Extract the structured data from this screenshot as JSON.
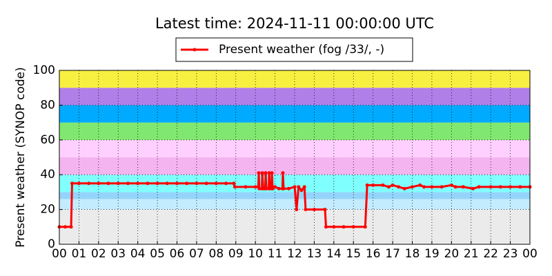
{
  "chart_data": {
    "type": "line",
    "title": "Latest time: 2024-11-11 00:00:00 UTC",
    "y_label": "Present weather (SYNOP code)",
    "x": [
      0,
      0.3,
      0.6,
      0.65,
      1,
      1.5,
      2,
      2.5,
      3,
      3.5,
      4,
      4.5,
      5,
      5.5,
      6,
      6.5,
      7,
      7.5,
      8,
      8.5,
      8.9,
      8.95,
      9.5,
      10,
      10.15,
      10.17,
      10.2,
      10.33,
      10.35,
      10.4,
      10.5,
      10.52,
      10.56,
      10.68,
      10.7,
      10.74,
      10.82,
      10.84,
      10.88,
      11,
      11.2,
      11.38,
      11.4,
      11.44,
      11.7,
      12,
      12.1,
      12.2,
      12.35,
      12.5,
      12.56,
      13,
      13.55,
      13.6,
      14,
      14.5,
      15,
      15.6,
      15.7,
      16,
      16.5,
      16.8,
      17,
      17.3,
      17.6,
      18,
      18.4,
      18.6,
      19,
      19.5,
      20,
      20.2,
      20.6,
      21.1,
      21.4,
      22,
      22.5,
      23,
      23.5,
      24
    ],
    "series": [
      {
        "name": "Present weather (fog /33/, -)",
        "color": "#ff0000",
        "values": [
          10,
          10,
          10,
          35,
          35,
          35,
          35,
          35,
          35,
          35,
          35,
          35,
          35,
          35,
          35,
          35,
          35,
          35,
          35,
          35,
          35,
          33,
          33,
          33,
          33,
          41,
          32,
          32,
          41,
          32,
          32,
          41,
          32,
          32,
          41,
          32,
          32,
          41,
          32,
          33,
          32,
          32,
          41,
          32,
          32,
          33,
          20,
          33,
          31,
          33,
          20,
          20,
          20,
          10,
          10,
          10,
          10,
          10,
          34,
          34,
          34,
          33,
          34,
          33,
          32,
          33,
          34,
          33,
          33,
          33,
          34,
          33,
          33,
          32,
          33,
          33,
          33,
          33,
          33,
          33
        ]
      }
    ],
    "xlim": [
      0,
      24
    ],
    "xticks": [
      {
        "value": 0,
        "label": "00"
      },
      {
        "value": 1,
        "label": "01"
      },
      {
        "value": 2,
        "label": "02"
      },
      {
        "value": 3,
        "label": "03"
      },
      {
        "value": 4,
        "label": "04"
      },
      {
        "value": 5,
        "label": "05"
      },
      {
        "value": 6,
        "label": "06"
      },
      {
        "value": 7,
        "label": "07"
      },
      {
        "value": 8,
        "label": "08"
      },
      {
        "value": 9,
        "label": "09"
      },
      10,
      11,
      12,
      13,
      14,
      15,
      16,
      17,
      18,
      19,
      20,
      21,
      22,
      23,
      {
        "value": 24,
        "label": "00"
      }
    ],
    "ylim": [
      0,
      100
    ],
    "yticks": [
      0,
      20,
      40,
      60,
      80,
      100
    ],
    "grid": true,
    "legend": "top",
    "bands": [
      {
        "from": 0,
        "to": 20,
        "color": "#ebebeb"
      },
      {
        "from": 20,
        "to": 26,
        "color": "#c4ecff"
      },
      {
        "from": 26,
        "to": 30,
        "color": "#94d4fa"
      },
      {
        "from": 30,
        "to": 40,
        "color": "#80ffff"
      },
      {
        "from": 40,
        "to": 50,
        "color": "#f4b4f0"
      },
      {
        "from": 50,
        "to": 60,
        "color": "#ffd0ff"
      },
      {
        "from": 60,
        "to": 70,
        "color": "#80e870"
      },
      {
        "from": 70,
        "to": 80,
        "color": "#00aaff"
      },
      {
        "from": 80,
        "to": 90,
        "color": "#b080e8"
      },
      {
        "from": 90,
        "to": 100,
        "color": "#f8f040"
      }
    ]
  }
}
